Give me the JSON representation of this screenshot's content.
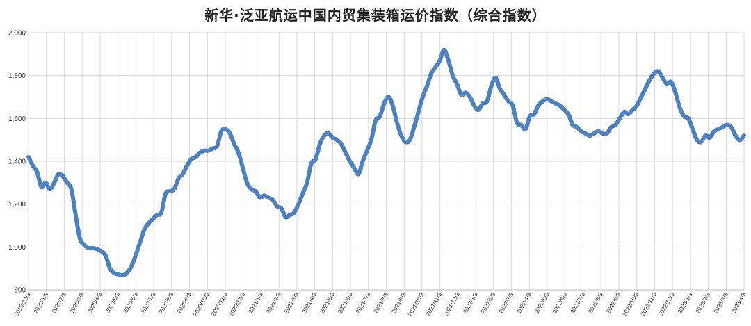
{
  "chart_data": {
    "type": "line",
    "title": "新华·泛亚航运中国内贸集装箱运价指数（综合指数）",
    "xlabel": "",
    "ylabel": "",
    "ylim": [
      800,
      2000
    ],
    "yticks": [
      "800",
      "1,000",
      "1,200",
      "1,400",
      "1,600",
      "1,800",
      "2,000"
    ],
    "grid": true,
    "line_color": "#4f81bd",
    "xticks": [
      "2019/12/3",
      "2020/1/3",
      "2020/2/3",
      "2020/3/3",
      "2020/4/3",
      "2020/5/3",
      "2020/6/3",
      "2020/7/3",
      "2020/8/3",
      "2020/9/3",
      "2020/10/3",
      "2020/11/3",
      "2020/12/3",
      "2021/1/3",
      "2021/2/3",
      "2021/3/3",
      "2021/4/3",
      "2021/5/3",
      "2021/6/3",
      "2021/7/3",
      "2021/8/3",
      "2021/9/3",
      "2021/10/3",
      "2021/11/3",
      "2021/12/3",
      "2022/1/3",
      "2022/2/3",
      "2022/3/3",
      "2022/4/3",
      "2022/5/3",
      "2022/6/3",
      "2022/7/3",
      "2022/8/3",
      "2022/9/3",
      "2022/10/3",
      "2022/11/3",
      "2022/12/3",
      "2023/1/3",
      "2023/2/3",
      "2023/3/3",
      "2023/4/3"
    ],
    "series": [
      {
        "values": [
          1420,
          1380,
          1350,
          1280,
          1300,
          1270,
          1300,
          1340,
          1330,
          1300,
          1270,
          1150,
          1040,
          1010,
          995,
          995,
          990,
          980,
          960,
          900,
          878,
          872,
          868,
          880,
          910,
          960,
          1020,
          1080,
          1110,
          1130,
          1150,
          1160,
          1250,
          1260,
          1270,
          1320,
          1340,
          1380,
          1410,
          1420,
          1440,
          1450,
          1450,
          1460,
          1470,
          1540,
          1550,
          1530,
          1480,
          1440,
          1370,
          1300,
          1270,
          1260,
          1230,
          1240,
          1230,
          1220,
          1190,
          1180,
          1140,
          1150,
          1160,
          1200,
          1250,
          1300,
          1390,
          1410,
          1480,
          1520,
          1530,
          1510,
          1500,
          1480,
          1440,
          1400,
          1370,
          1340,
          1400,
          1450,
          1500,
          1590,
          1610,
          1670,
          1700,
          1660,
          1580,
          1520,
          1490,
          1500,
          1560,
          1630,
          1700,
          1750,
          1810,
          1840,
          1870,
          1920,
          1870,
          1800,
          1760,
          1710,
          1720,
          1700,
          1660,
          1640,
          1670,
          1680,
          1750,
          1790,
          1740,
          1710,
          1680,
          1660,
          1580,
          1570,
          1550,
          1610,
          1620,
          1660,
          1680,
          1690,
          1680,
          1670,
          1660,
          1640,
          1620,
          1570,
          1560,
          1540,
          1530,
          1520,
          1530,
          1540,
          1530,
          1530,
          1560,
          1570,
          1600,
          1630,
          1620,
          1640,
          1660,
          1700,
          1740,
          1780,
          1810,
          1820,
          1790,
          1760,
          1770,
          1720,
          1650,
          1610,
          1600,
          1550,
          1500,
          1490,
          1520,
          1510,
          1540,
          1550,
          1560,
          1570,
          1560,
          1520,
          1500,
          1520
        ]
      }
    ]
  }
}
